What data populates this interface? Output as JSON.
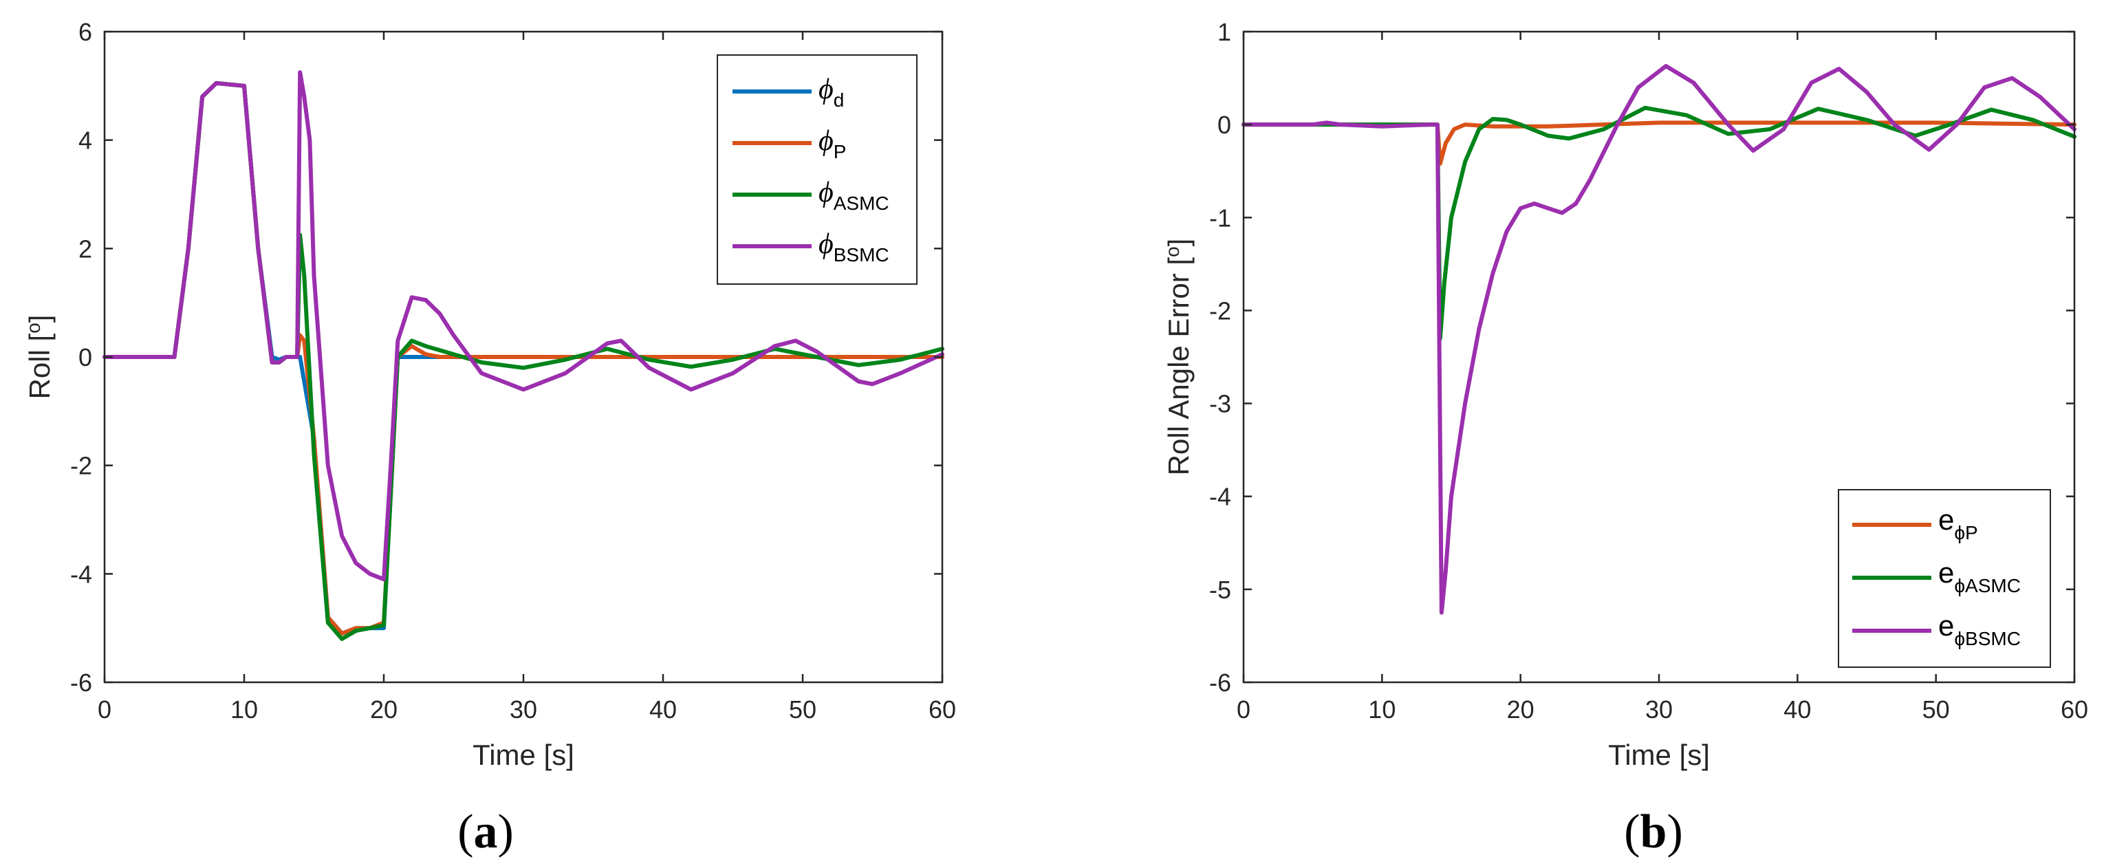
{
  "chart_data": [
    {
      "type": "line",
      "panel_label": "a",
      "xlabel": "Time [s]",
      "ylabel": "Roll [",
      "ylabel_sup": "o",
      "ylabel_tail": "]",
      "xlim": [
        0,
        60
      ],
      "ylim": [
        -6,
        6
      ],
      "xticks": [
        "0",
        "10",
        "20",
        "30",
        "40",
        "50",
        "60"
      ],
      "yticks": [
        "-6",
        "-4",
        "-2",
        "0",
        "2",
        "4",
        "6"
      ],
      "legend_position": "top-right",
      "series": [
        {
          "name": "ϕ",
          "sub": "d",
          "color": "#0072BD",
          "x": [
            0,
            5,
            6,
            7,
            8,
            10,
            11,
            12,
            12.5,
            13,
            14,
            15,
            16,
            17,
            18,
            19,
            20,
            20.5,
            21,
            22,
            23,
            60
          ],
          "y": [
            0,
            0,
            2,
            4.8,
            5.05,
            5.0,
            2.0,
            0.0,
            -0.05,
            0.0,
            0.0,
            -1.5,
            -4.8,
            -5.1,
            -5.0,
            -5.0,
            -5.0,
            -2.5,
            0,
            0,
            0,
            0
          ]
        },
        {
          "name": "ϕ",
          "sub": "P",
          "color": "#D95319",
          "x": [
            0,
            5,
            6,
            7,
            8,
            10,
            11,
            12,
            12.5,
            13,
            13.8,
            14,
            14.3,
            15,
            16,
            17,
            18,
            19,
            20,
            20.5,
            21,
            22,
            23,
            24,
            26,
            28,
            60
          ],
          "y": [
            0,
            0,
            2,
            4.8,
            5.05,
            5.0,
            2.0,
            -0.1,
            -0.1,
            0.0,
            0.0,
            0.4,
            0.3,
            -1.5,
            -4.8,
            -5.1,
            -5.0,
            -5.0,
            -4.9,
            -2.5,
            0,
            0.2,
            0.05,
            0.0,
            0.0,
            0.0,
            0.0
          ]
        },
        {
          "name": "ϕ",
          "sub": "ASMC",
          "color": "#00841A",
          "x": [
            0,
            5,
            6,
            7,
            8,
            10,
            11,
            12,
            12.5,
            13,
            13.8,
            14.0,
            14.3,
            15,
            16,
            17,
            18,
            19,
            20,
            20.5,
            21,
            22,
            23,
            25,
            27,
            30,
            33,
            36,
            39,
            42,
            45,
            48,
            51,
            54,
            57,
            60
          ],
          "y": [
            0,
            0,
            2,
            4.8,
            5.05,
            5.0,
            2.0,
            -0.1,
            -0.1,
            0.0,
            0.0,
            2.25,
            1.5,
            -1.8,
            -4.9,
            -5.2,
            -5.05,
            -5.0,
            -4.95,
            -2.5,
            0,
            0.3,
            0.2,
            0.05,
            -0.1,
            -0.2,
            -0.05,
            0.15,
            -0.05,
            -0.18,
            -0.05,
            0.15,
            0.0,
            -0.15,
            -0.05,
            0.15
          ]
        },
        {
          "name": "ϕ",
          "sub": "BSMC",
          "color": "#9B2FAE",
          "x": [
            0,
            5,
            6,
            7,
            8,
            10,
            11,
            12,
            12.5,
            13,
            13.8,
            14.0,
            14.3,
            14.7,
            15,
            16,
            17,
            18,
            19,
            20,
            20.5,
            21,
            22,
            23,
            24,
            25,
            27,
            30,
            33,
            36,
            37,
            39,
            42,
            45,
            48,
            49.5,
            51,
            54,
            55,
            57,
            60
          ],
          "y": [
            0,
            0,
            2,
            4.8,
            5.05,
            5.0,
            2.0,
            -0.1,
            -0.1,
            0.0,
            0.0,
            5.25,
            4.8,
            4.0,
            1.5,
            -2.0,
            -3.3,
            -3.8,
            -4.0,
            -4.1,
            -2.0,
            0.3,
            1.1,
            1.05,
            0.8,
            0.4,
            -0.3,
            -0.6,
            -0.3,
            0.25,
            0.3,
            -0.2,
            -0.6,
            -0.3,
            0.2,
            0.3,
            0.1,
            -0.45,
            -0.5,
            -0.3,
            0.05
          ]
        }
      ]
    },
    {
      "type": "line",
      "panel_label": "b",
      "xlabel": "Time [s]",
      "ylabel": "Roll Angle Error [",
      "ylabel_sup": "o",
      "ylabel_tail": "]",
      "xlim": [
        0,
        60
      ],
      "ylim": [
        -6,
        1
      ],
      "xticks": [
        "0",
        "10",
        "20",
        "30",
        "40",
        "50",
        "60"
      ],
      "yticks": [
        "-6",
        "-5",
        "-4",
        "-3",
        "-2",
        "-1",
        "0",
        "1"
      ],
      "legend_position": "bottom-right",
      "series": [
        {
          "name": "e",
          "sub": "ϕP",
          "color": "#D95319",
          "x": [
            0,
            14.0,
            14.2,
            14.6,
            15.2,
            16,
            18,
            22,
            30,
            40,
            50,
            60
          ],
          "y": [
            0,
            0,
            -0.42,
            -0.2,
            -0.05,
            0,
            -0.02,
            -0.02,
            0.02,
            0.02,
            0.02,
            0.0
          ]
        },
        {
          "name": "e",
          "sub": "ϕASMC",
          "color": "#00841A",
          "x": [
            0,
            14.0,
            14.2,
            14.5,
            15,
            16,
            17,
            18,
            19,
            20,
            22,
            23.5,
            26,
            29,
            32,
            35,
            38,
            41.5,
            45,
            48.5,
            51,
            54,
            57,
            60
          ],
          "y": [
            0,
            0,
            -2.3,
            -1.7,
            -1.0,
            -0.4,
            -0.05,
            0.06,
            0.05,
            0.0,
            -0.12,
            -0.15,
            -0.05,
            0.18,
            0.1,
            -0.1,
            -0.05,
            0.17,
            0.05,
            -0.12,
            0.0,
            0.16,
            0.05,
            -0.13
          ]
        },
        {
          "name": "e",
          "sub": "ϕBSMC",
          "color": "#9B2FAE",
          "x": [
            0,
            5,
            6,
            7,
            10,
            13.5,
            14.0,
            14.3,
            14.6,
            15,
            16,
            17,
            18,
            19,
            20,
            21,
            22,
            23,
            24,
            25,
            27,
            28.5,
            30.5,
            32.5,
            35,
            36.8,
            39,
            41,
            43,
            45,
            47,
            49.5,
            51.5,
            53.5,
            55.5,
            57.5,
            60
          ],
          "y": [
            0,
            0,
            0.02,
            0.0,
            -0.02,
            0.0,
            0.0,
            -5.25,
            -4.8,
            -4.0,
            -3.0,
            -2.2,
            -1.6,
            -1.15,
            -0.9,
            -0.85,
            -0.9,
            -0.95,
            -0.85,
            -0.6,
            0.0,
            0.4,
            0.63,
            0.45,
            0.0,
            -0.28,
            -0.05,
            0.45,
            0.6,
            0.35,
            0.0,
            -0.27,
            0.0,
            0.4,
            0.5,
            0.3,
            -0.05
          ]
        }
      ]
    }
  ]
}
